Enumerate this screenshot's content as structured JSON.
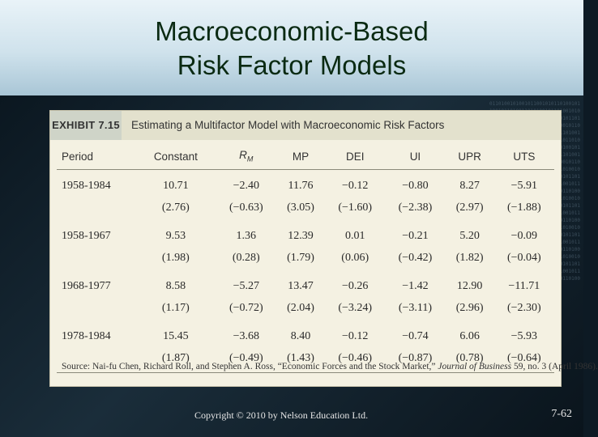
{
  "slide": {
    "title_line1": "Macroeconomic-Based",
    "title_line2": "Risk Factor Models",
    "footer": "Copyright © 2010 by Nelson Education Ltd.",
    "page_number": "7-62"
  },
  "exhibit": {
    "label": "EXHIBIT 7.15",
    "caption": "Estimating a Multifactor Model with Macroeconomic Risk Factors",
    "headers": [
      "Period",
      "Constant",
      "RM",
      "MP",
      "DEI",
      "UI",
      "UPR",
      "UTS"
    ],
    "rows": [
      {
        "period": "1958-1984",
        "coef": [
          "10.71",
          "−2.40",
          "11.76",
          "−0.12",
          "−0.80",
          "8.27",
          "−5.91"
        ],
        "tstat": [
          "(2.76)",
          "(−0.63)",
          "(3.05)",
          "(−1.60)",
          "(−2.38)",
          "(2.97)",
          "(−1.88)"
        ]
      },
      {
        "period": "1958-1967",
        "coef": [
          "9.53",
          "1.36",
          "12.39",
          "0.01",
          "−0.21",
          "5.20",
          "−0.09"
        ],
        "tstat": [
          "(1.98)",
          "(0.28)",
          "(1.79)",
          "(0.06)",
          "(−0.42)",
          "(1.82)",
          "(−0.04)"
        ]
      },
      {
        "period": "1968-1977",
        "coef": [
          "8.58",
          "−5.27",
          "13.47",
          "−0.26",
          "−1.42",
          "12.90",
          "−11.71"
        ],
        "tstat": [
          "(1.17)",
          "(−0.72)",
          "(2.04)",
          "(−3.24)",
          "(−3.11)",
          "(2.96)",
          "(−2.30)"
        ]
      },
      {
        "period": "1978-1984",
        "coef": [
          "15.45",
          "−3.68",
          "8.40",
          "−0.12",
          "−0.74",
          "6.06",
          "−5.93"
        ],
        "tstat": [
          "(1.87)",
          "(−0.49)",
          "(1.43)",
          "(−0.46)",
          "(−0.87)",
          "(0.78)",
          "(−0.64)"
        ]
      }
    ],
    "source_prefix": "Source: Nai-fu Chen, Richard Roll, and Stephen A. Ross, “Economic Forces and the Stock Market,” ",
    "source_journal": "Journal of Business",
    "source_suffix": " 59, no. 3 (April 1986)."
  },
  "colors": {
    "title_text": "#0a2a12",
    "exhibit_bg": "#f4f1e2",
    "exhibit_header_bg": "#e3e1cd",
    "background_dark": "#0d1a24"
  }
}
